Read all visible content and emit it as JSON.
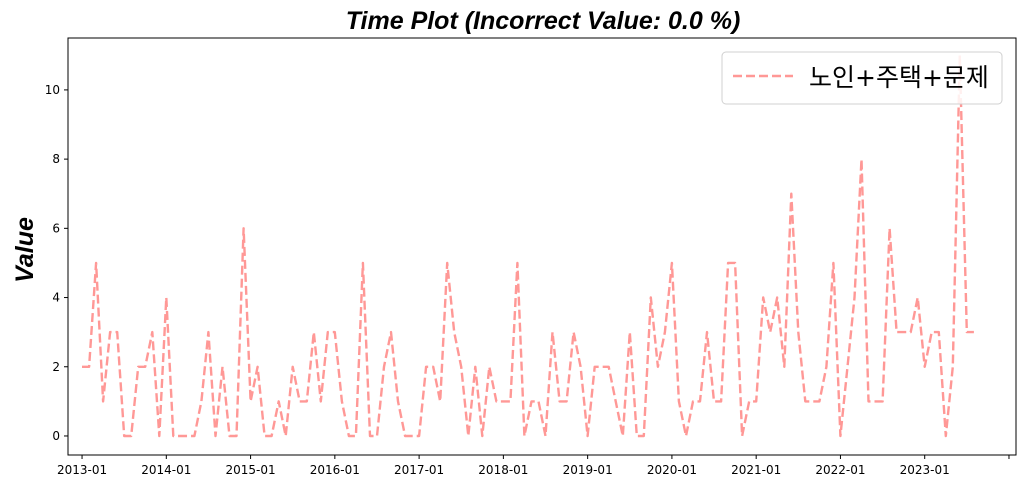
{
  "chart_data": {
    "type": "line",
    "title": "Time Plot (Incorrect Value: 0.0 %)",
    "xlabel": "",
    "ylabel": "Value",
    "ylim": [
      -0.55,
      11.5
    ],
    "yticks": [
      0,
      2,
      4,
      6,
      8,
      10
    ],
    "xlim": [
      "2012-11",
      "2024-02"
    ],
    "xtick_labels": [
      "2013-01",
      "2014-01",
      "2015-01",
      "2016-01",
      "2017-01",
      "2018-01",
      "2019-01",
      "2020-01",
      "2021-01",
      "2022-01",
      "2023-01"
    ],
    "xtick_minor_label": "",
    "legend_position": "top-right",
    "grid": false,
    "series": [
      {
        "name": "노인+주택+문제",
        "color": "#ff9896",
        "line_style": "dashed",
        "x": [
          "2013-01",
          "2013-02",
          "2013-03",
          "2013-04",
          "2013-05",
          "2013-06",
          "2013-07",
          "2013-08",
          "2013-09",
          "2013-10",
          "2013-11",
          "2013-12",
          "2014-01",
          "2014-02",
          "2014-03",
          "2014-04",
          "2014-05",
          "2014-06",
          "2014-07",
          "2014-08",
          "2014-09",
          "2014-10",
          "2014-11",
          "2014-12",
          "2015-01",
          "2015-02",
          "2015-03",
          "2015-04",
          "2015-05",
          "2015-06",
          "2015-07",
          "2015-08",
          "2015-09",
          "2015-10",
          "2015-11",
          "2015-12",
          "2016-01",
          "2016-02",
          "2016-03",
          "2016-04",
          "2016-05",
          "2016-06",
          "2016-07",
          "2016-08",
          "2016-09",
          "2016-10",
          "2016-11",
          "2016-12",
          "2017-01",
          "2017-02",
          "2017-03",
          "2017-04",
          "2017-05",
          "2017-06",
          "2017-07",
          "2017-08",
          "2017-09",
          "2017-10",
          "2017-11",
          "2017-12",
          "2018-01",
          "2018-02",
          "2018-03",
          "2018-04",
          "2018-05",
          "2018-06",
          "2018-07",
          "2018-08",
          "2018-09",
          "2018-10",
          "2018-11",
          "2018-12",
          "2019-01",
          "2019-02",
          "2019-03",
          "2019-04",
          "2019-05",
          "2019-06",
          "2019-07",
          "2019-08",
          "2019-09",
          "2019-10",
          "2019-11",
          "2019-12",
          "2020-01",
          "2020-02",
          "2020-03",
          "2020-04",
          "2020-05",
          "2020-06",
          "2020-07",
          "2020-08",
          "2020-09",
          "2020-10",
          "2020-11",
          "2020-12",
          "2021-01",
          "2021-02",
          "2021-03",
          "2021-04",
          "2021-05",
          "2021-06",
          "2021-07",
          "2021-08",
          "2021-09",
          "2021-10",
          "2021-11",
          "2021-12",
          "2022-01",
          "2022-02",
          "2022-03",
          "2022-04",
          "2022-05",
          "2022-06",
          "2022-07",
          "2022-08",
          "2022-09",
          "2022-10",
          "2022-11",
          "2022-12",
          "2023-01",
          "2023-02",
          "2023-03",
          "2023-04",
          "2023-05",
          "2023-06",
          "2023-07",
          "2023-08"
        ],
        "values": [
          2,
          2,
          5,
          1,
          3,
          3,
          0,
          0,
          2,
          2,
          3,
          0,
          4,
          0,
          0,
          0,
          0,
          1,
          3,
          0,
          2,
          0,
          0,
          6,
          1,
          2,
          0,
          0,
          1,
          0,
          2,
          1,
          1,
          3,
          1,
          3,
          3,
          1,
          0,
          0,
          5,
          0,
          0,
          2,
          3,
          1,
          0,
          0,
          0,
          2,
          2,
          1,
          5,
          3,
          2,
          0,
          2,
          0,
          2,
          1,
          1,
          1,
          5,
          0,
          1,
          1,
          0,
          3,
          1,
          1,
          3,
          2,
          0,
          2,
          2,
          2,
          1,
          0,
          3,
          0,
          0,
          4,
          2,
          3,
          5,
          1,
          0,
          1,
          1,
          3,
          1,
          1,
          5,
          5,
          0,
          1,
          1,
          4,
          3,
          4,
          2,
          7,
          3,
          1,
          1,
          1,
          2,
          5,
          0,
          2,
          4,
          8,
          1,
          1,
          1,
          6,
          3,
          3,
          3,
          4,
          2,
          3,
          3,
          0,
          2,
          11,
          3,
          3
        ]
      }
    ]
  }
}
